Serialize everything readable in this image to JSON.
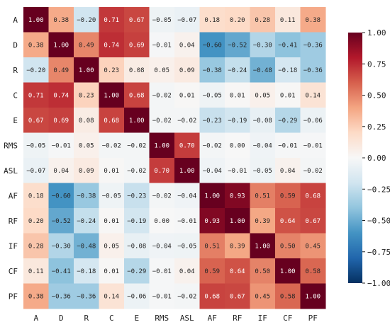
{
  "chart_data": {
    "type": "heatmap",
    "title": "",
    "xlabel": "",
    "ylabel": "",
    "x_labels": [
      "A",
      "D",
      "R",
      "C",
      "E",
      "RMS",
      "ASL",
      "AF",
      "RF",
      "IF",
      "CF",
      "PF"
    ],
    "y_labels": [
      "A",
      "D",
      "R",
      "C",
      "E",
      "RMS",
      "ASL",
      "AF",
      "RF",
      "IF",
      "CF",
      "PF"
    ],
    "values": [
      [
        1.0,
        0.38,
        -0.2,
        0.71,
        0.67,
        -0.05,
        -0.07,
        0.18,
        0.2,
        0.28,
        0.11,
        0.38
      ],
      [
        0.38,
        1.0,
        0.49,
        0.74,
        0.69,
        -0.01,
        0.04,
        -0.6,
        -0.52,
        -0.3,
        -0.41,
        -0.36
      ],
      [
        -0.2,
        0.49,
        1.0,
        0.23,
        0.08,
        0.05,
        0.09,
        -0.38,
        -0.24,
        -0.48,
        -0.18,
        -0.36
      ],
      [
        0.71,
        0.74,
        0.23,
        1.0,
        0.68,
        -0.02,
        0.01,
        -0.05,
        0.01,
        0.05,
        0.01,
        0.14
      ],
      [
        0.67,
        0.69,
        0.08,
        0.68,
        1.0,
        -0.02,
        -0.02,
        -0.23,
        -0.19,
        -0.08,
        -0.29,
        -0.06
      ],
      [
        -0.05,
        -0.01,
        0.05,
        -0.02,
        -0.02,
        1.0,
        0.7,
        -0.02,
        -0.0,
        -0.04,
        -0.01,
        -0.01
      ],
      [
        -0.07,
        0.04,
        0.09,
        0.01,
        -0.02,
        0.7,
        1.0,
        -0.04,
        -0.01,
        -0.05,
        0.04,
        -0.02
      ],
      [
        0.18,
        -0.6,
        -0.38,
        -0.05,
        -0.23,
        -0.02,
        -0.04,
        1.0,
        0.93,
        0.51,
        0.59,
        0.68
      ],
      [
        0.2,
        -0.52,
        -0.24,
        0.01,
        -0.19,
        -0.0,
        -0.01,
        0.93,
        1.0,
        0.39,
        0.64,
        0.67
      ],
      [
        0.28,
        -0.3,
        -0.48,
        0.05,
        -0.08,
        -0.04,
        -0.05,
        0.51,
        0.39,
        1.0,
        0.5,
        0.45
      ],
      [
        0.11,
        -0.41,
        -0.18,
        0.01,
        -0.29,
        -0.01,
        0.04,
        0.59,
        0.64,
        0.5,
        1.0,
        0.58
      ],
      [
        0.38,
        -0.36,
        -0.36,
        0.14,
        -0.06,
        -0.01,
        -0.02,
        0.68,
        0.67,
        0.45,
        0.58,
        1.0
      ]
    ],
    "value_range": [
      -1.0,
      1.0
    ],
    "colorbar": {
      "ticks": [
        1.0,
        0.75,
        0.5,
        0.25,
        0.0,
        -0.25,
        -0.5,
        -0.75,
        -1.0
      ],
      "tick_labels": [
        "1.00",
        "0.75",
        "0.50",
        "0.25",
        "0.00",
        "−0.25",
        "−0.50",
        "−0.75",
        "−1.00"
      ],
      "colors": [
        "#053061",
        "#2166ac",
        "#4393c3",
        "#92c5de",
        "#d1e5f0",
        "#f7f7f7",
        "#fddbc7",
        "#f4a582",
        "#d6604d",
        "#b2182b",
        "#67001f"
      ]
    },
    "legend_position": "right",
    "grid": false
  }
}
